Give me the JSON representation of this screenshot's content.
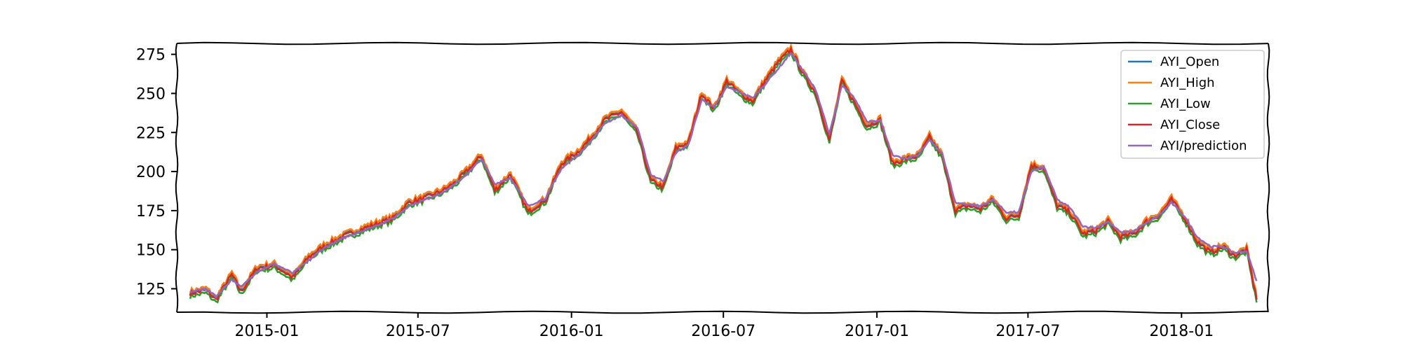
{
  "chart_data": {
    "type": "line",
    "title": "",
    "xlabel": "",
    "ylabel": "",
    "xlim": [
      "2014-09-15",
      "2018-04-15"
    ],
    "ylim": [
      110,
      282
    ],
    "grid": false,
    "legend_position": "top-right",
    "x_ticks": [
      "2015-01-01",
      "2015-07-01",
      "2016-01-01",
      "2016-07-01",
      "2017-01-01",
      "2017-07-01",
      "2018-01-01"
    ],
    "x_tick_labels": [
      "2015-01",
      "2015-07",
      "2016-01",
      "2016-07",
      "2017-01",
      "2017-07",
      "2018-01"
    ],
    "y_ticks": [
      125,
      150,
      175,
      200,
      225,
      250,
      275
    ],
    "y_tick_labels": [
      "125",
      "150",
      "175",
      "200",
      "225",
      "250",
      "275"
    ],
    "series": [
      {
        "name": "AYI_Open",
        "color": "#1f77b4"
      },
      {
        "name": "AYI_High",
        "color": "#ff7f0e"
      },
      {
        "name": "AYI_Low",
        "color": "#2ca02c"
      },
      {
        "name": "AYI_Close",
        "color": "#d62728"
      },
      {
        "name": "AYI/prediction",
        "color": "#9467bd"
      }
    ],
    "x": [
      "2014-10-01",
      "2014-10-20",
      "2014-11-01",
      "2014-11-20",
      "2014-12-01",
      "2014-12-20",
      "2015-01-10",
      "2015-02-01",
      "2015-02-20",
      "2015-03-10",
      "2015-04-01",
      "2015-04-20",
      "2015-05-10",
      "2015-06-01",
      "2015-06-20",
      "2015-07-10",
      "2015-08-01",
      "2015-08-15",
      "2015-09-01",
      "2015-09-15",
      "2015-10-01",
      "2015-10-20",
      "2015-11-10",
      "2015-12-01",
      "2015-12-20",
      "2016-01-10",
      "2016-01-25",
      "2016-02-10",
      "2016-03-01",
      "2016-03-20",
      "2016-04-05",
      "2016-04-20",
      "2016-05-05",
      "2016-05-20",
      "2016-06-05",
      "2016-06-20",
      "2016-07-05",
      "2016-07-20",
      "2016-08-05",
      "2016-08-20",
      "2016-09-05",
      "2016-09-20",
      "2016-10-05",
      "2016-10-20",
      "2016-11-05",
      "2016-11-20",
      "2016-12-05",
      "2016-12-20",
      "2017-01-05",
      "2017-01-20",
      "2017-02-05",
      "2017-02-20",
      "2017-03-05",
      "2017-03-20",
      "2017-04-05",
      "2017-04-20",
      "2017-05-05",
      "2017-05-20",
      "2017-06-05",
      "2017-06-20",
      "2017-07-05",
      "2017-07-20",
      "2017-08-05",
      "2017-08-20",
      "2017-09-05",
      "2017-09-20",
      "2017-10-05",
      "2017-10-20",
      "2017-11-05",
      "2017-11-20",
      "2017-12-05",
      "2017-12-20",
      "2018-01-05",
      "2018-01-20",
      "2018-02-05",
      "2018-02-20",
      "2018-03-05",
      "2018-03-20",
      "2018-04-01"
    ],
    "close": [
      122,
      124,
      118,
      134,
      123,
      138,
      140,
      132,
      145,
      152,
      158,
      162,
      166,
      170,
      180,
      183,
      188,
      193,
      202,
      210,
      188,
      198,
      174,
      182,
      205,
      213,
      222,
      233,
      238,
      225,
      194,
      190,
      215,
      218,
      250,
      240,
      258,
      250,
      245,
      258,
      270,
      278,
      262,
      250,
      220,
      258,
      244,
      229,
      233,
      205,
      208,
      210,
      222,
      210,
      175,
      178,
      176,
      182,
      170,
      172,
      204,
      202,
      178,
      174,
      160,
      162,
      168,
      158,
      160,
      168,
      172,
      182,
      170,
      155,
      148,
      152,
      146,
      150,
      118
    ],
    "prediction": [
      123,
      125,
      120,
      131,
      126,
      136,
      141,
      135,
      143,
      151,
      157,
      161,
      165,
      170,
      178,
      182,
      187,
      192,
      200,
      208,
      192,
      196,
      178,
      183,
      202,
      211,
      220,
      231,
      236,
      228,
      198,
      194,
      212,
      217,
      246,
      241,
      254,
      251,
      247,
      256,
      266,
      276,
      264,
      252,
      224,
      255,
      247,
      232,
      233,
      210,
      208,
      211,
      220,
      212,
      180,
      179,
      178,
      182,
      174,
      174,
      200,
      203,
      182,
      177,
      165,
      164,
      168,
      161,
      162,
      167,
      172,
      180,
      171,
      158,
      152,
      152,
      148,
      149,
      130
    ]
  },
  "legend": {
    "labels": [
      "AYI_Open",
      "AYI_High",
      "AYI_Low",
      "AYI_Close",
      "AYI/prediction"
    ]
  }
}
